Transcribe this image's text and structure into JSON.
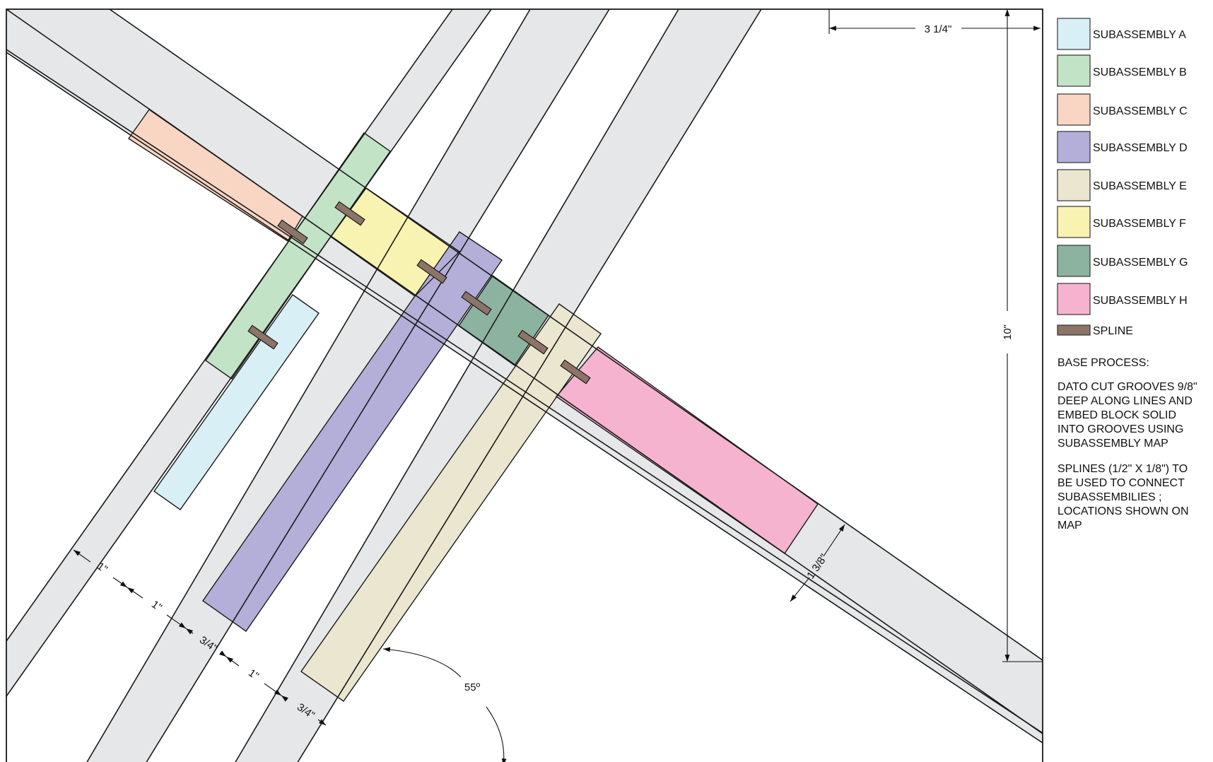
{
  "colors": {
    "base_bar": "#e6e7e9",
    "outline": "#1a1a1a",
    "subassembly_a": "#d9eff6",
    "subassembly_b": "#c3e3c7",
    "subassembly_c": "#f9d5c3",
    "subassembly_d": "#b3afd9",
    "subassembly_e": "#ebe6cf",
    "subassembly_f": "#f8f3b0",
    "subassembly_g": "#8cb3a0",
    "subassembly_h": "#f6b3cf",
    "spline": "#8c7468"
  },
  "legend": [
    {
      "label": "SUBASSEMBLY A",
      "color_key": "subassembly_a"
    },
    {
      "label": "SUBASSEMBLY B",
      "color_key": "subassembly_b"
    },
    {
      "label": "SUBASSEMBLY C",
      "color_key": "subassembly_c"
    },
    {
      "label": "SUBASSEMBLY D",
      "color_key": "subassembly_d"
    },
    {
      "label": "SUBASSEMBLY E",
      "color_key": "subassembly_e"
    },
    {
      "label": "SUBASSEMBLY F",
      "color_key": "subassembly_f"
    },
    {
      "label": "SUBASSEMBLY G",
      "color_key": "subassembly_g"
    },
    {
      "label": "SUBASSEMBLY H",
      "color_key": "subassembly_h"
    },
    {
      "label": "SPLINE",
      "color_key": "spline"
    }
  ],
  "dimensions": {
    "top_width": "3 1/4\"",
    "height": "10\"",
    "band_width": "1 3/8\"",
    "gap_1": "1\"",
    "gap_2": "1\"",
    "bar_width_1": "3/4\"",
    "gap_3": "1\"",
    "bar_width_2": "3/4\"",
    "angle": "55º"
  },
  "notes": {
    "title": "BASE PROCESS:",
    "process": "DATO CUT GROOVES 9/8\" DEEP ALONG LINES AND EMBED BLOCK SOLID INTO GROOVES USING SUBASSEMBLY MAP",
    "splines": "SPLINES (1/2\" X 1/8\") TO BE USED TO CONNECT SUBASSEMBILIES ; LOCATIONS SHOWN ON MAP"
  }
}
